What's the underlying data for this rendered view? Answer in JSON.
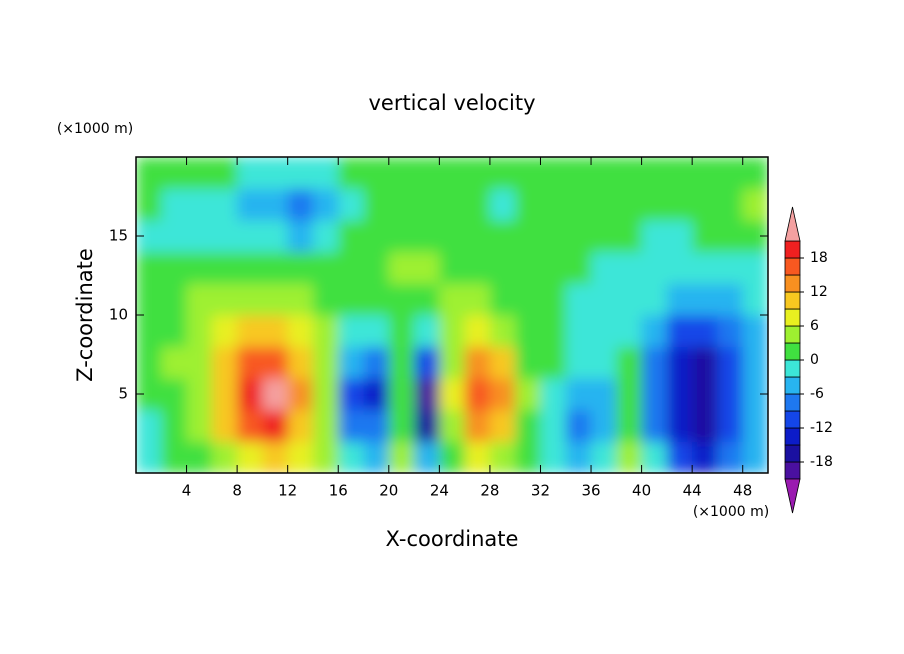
{
  "chart_data": {
    "type": "contour",
    "title": "vertical velocity",
    "x_label": "X-coordinate",
    "y_label": "Z-coordinate",
    "x_unit_label": "(×1000 m)",
    "y_unit_label": "(×1000 m)",
    "xlim": [
      0,
      50
    ],
    "ylim": [
      0,
      20
    ],
    "xticks": [
      4,
      8,
      12,
      16,
      20,
      24,
      28,
      32,
      36,
      40,
      44,
      48
    ],
    "yticks": [
      5,
      10,
      15
    ],
    "x": [
      1,
      3,
      5,
      7,
      9,
      11,
      13,
      15,
      17,
      19,
      21,
      23,
      25,
      27,
      29,
      31,
      33,
      35,
      37,
      39,
      41,
      43,
      45,
      47,
      49
    ],
    "y": [
      1,
      3,
      5,
      7,
      9,
      11,
      13,
      15,
      17,
      19
    ],
    "z": [
      [
        -2,
        1,
        2,
        4,
        8,
        9,
        6,
        3,
        -3,
        -5,
        4,
        -6,
        2,
        6,
        4,
        1,
        -1,
        -6,
        -3,
        3,
        -2,
        -12,
        -14,
        -9,
        -5
      ],
      [
        -1,
        2,
        4,
        9,
        16,
        18,
        10,
        4,
        -8,
        -9,
        2,
        -16,
        4,
        12,
        9,
        2,
        -2,
        -7,
        -4,
        2,
        -8,
        -15,
        -17,
        -12,
        -6
      ],
      [
        0,
        2,
        5,
        11,
        19,
        23,
        12,
        5,
        -10,
        -14,
        1,
        -19,
        6,
        16,
        12,
        3,
        -1,
        -4,
        -6,
        1,
        -9,
        -15,
        -17,
        -12,
        -6
      ],
      [
        1,
        3,
        5,
        9,
        15,
        17,
        10,
        4,
        -5,
        -7,
        2,
        -10,
        5,
        12,
        9,
        2,
        0,
        -3,
        -2,
        0,
        -8,
        -14,
        -16,
        -12,
        -5
      ],
      [
        1,
        2,
        4,
        6,
        9,
        10,
        6,
        3,
        -1,
        -2,
        2,
        -3,
        4,
        7,
        5,
        1,
        0,
        -2,
        -1,
        -1,
        -5,
        -10,
        -11,
        -9,
        -4
      ],
      [
        1,
        1,
        3,
        4,
        4,
        5,
        3,
        2,
        1,
        1,
        2,
        2,
        3,
        3,
        2,
        1,
        0,
        -1,
        -2,
        -2,
        -3,
        -5,
        -6,
        -4,
        -2
      ],
      [
        0,
        1,
        1,
        2,
        2,
        2,
        1,
        1,
        1,
        2,
        3,
        4,
        2,
        2,
        1,
        1,
        0,
        0,
        -1,
        -1,
        -2,
        -3,
        -2,
        -2,
        -1
      ],
      [
        -1,
        -2,
        -1,
        -2,
        -3,
        -3,
        -4,
        -2,
        1,
        2,
        2,
        2,
        1,
        1,
        1,
        1,
        1,
        1,
        0,
        0,
        -1,
        -1,
        0,
        1,
        2
      ],
      [
        0,
        -2,
        -2,
        -3,
        -4,
        -5,
        -9,
        -5,
        -1,
        1,
        1,
        1,
        1,
        0,
        -1,
        0,
        1,
        1,
        1,
        1,
        1,
        0,
        1,
        2,
        3
      ],
      [
        1,
        1,
        1,
        0,
        -1,
        -1,
        -2,
        -2,
        0,
        1,
        1,
        1,
        1,
        1,
        0,
        0,
        1,
        1,
        1,
        1,
        1,
        2,
        2,
        2,
        1
      ]
    ],
    "levels": [
      -21,
      -18,
      -15,
      -12,
      -9,
      -6,
      -3,
      0,
      3,
      6,
      9,
      12,
      15,
      18,
      21
    ],
    "colors": [
      "#9a1ab0",
      "#4a10a0",
      "#1a10a0",
      "#0c1cc8",
      "#1446e8",
      "#1e78f0",
      "#28b4f0",
      "#3ce6d8",
      "#40e040",
      "#9ef030",
      "#e8f020",
      "#f8c820",
      "#f89020",
      "#f85820",
      "#f02020",
      "#f4a0a0"
    ],
    "colorbar_ticks": [
      -18,
      -12,
      -6,
      0,
      6,
      12,
      18
    ]
  }
}
